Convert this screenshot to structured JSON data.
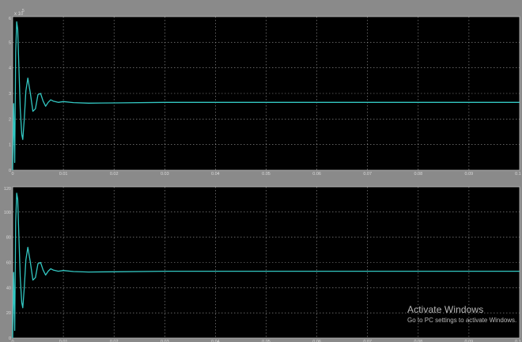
{
  "colors": {
    "figure_bg": "#8a8a8a",
    "axes_bg": "#000000",
    "trace": "#33c7c2",
    "grid": "#9a9a9a",
    "text": "#d8d8d8",
    "watermark": "#b9b9b9"
  },
  "chart_data": [
    {
      "type": "line",
      "title": "",
      "xlabel": "",
      "ylabel": "",
      "exponent_label": "x 10",
      "exponent_power": "5",
      "xlim": [
        0,
        0.1
      ],
      "ylim": [
        0,
        6
      ],
      "xticks": [
        0,
        0.01,
        0.02,
        0.03,
        0.04,
        0.05,
        0.06,
        0.07,
        0.08,
        0.09,
        0.1
      ],
      "xtick_labels": [
        "0",
        "0.01",
        "0.02",
        "0.03",
        "0.04",
        "0.05",
        "0.06",
        "0.07",
        "0.08",
        "0.09",
        "0.1"
      ],
      "yticks": [
        0,
        1,
        2,
        3,
        4,
        5,
        6
      ],
      "ytick_labels": [
        "0",
        "1",
        "2",
        "3",
        "4",
        "5",
        "6"
      ],
      "grid": true,
      "legend": "none",
      "series": [
        {
          "x": [
            0,
            0.0002,
            0.0004,
            0.0006,
            0.0008,
            0.001,
            0.0012,
            0.0015,
            0.0018,
            0.002,
            0.0023,
            0.0026,
            0.003,
            0.0035,
            0.004,
            0.0045,
            0.005,
            0.0055,
            0.006,
            0.0065,
            0.007,
            0.0075,
            0.008,
            0.009,
            0.01,
            0.012,
            0.015,
            0.02,
            0.03,
            0.05,
            0.07,
            0.1
          ],
          "y": [
            0,
            2.6,
            0.3,
            4.6,
            5.8,
            5.5,
            4.2,
            2.4,
            1.4,
            1.2,
            2.0,
            3.1,
            3.6,
            3.0,
            2.3,
            2.4,
            2.95,
            3.0,
            2.7,
            2.5,
            2.65,
            2.75,
            2.7,
            2.65,
            2.68,
            2.64,
            2.62,
            2.63,
            2.65,
            2.65,
            2.65,
            2.65
          ]
        }
      ]
    },
    {
      "type": "line",
      "title": "",
      "xlabel": "",
      "ylabel": "",
      "xlim": [
        0,
        0.1
      ],
      "ylim": [
        0,
        120
      ],
      "xticks": [
        0,
        0.01,
        0.02,
        0.03,
        0.04,
        0.05,
        0.06,
        0.07,
        0.08,
        0.09,
        0.1
      ],
      "xtick_labels": [
        "0",
        "0.01",
        "0.02",
        "0.03",
        "0.04",
        "0.05",
        "0.06",
        "0.07",
        "0.08",
        "0.09",
        "0.1"
      ],
      "yticks": [
        0,
        20,
        40,
        60,
        80,
        100,
        120
      ],
      "ytick_labels": [
        "0",
        "20",
        "40",
        "60",
        "80",
        "100",
        "120"
      ],
      "grid": true,
      "legend": "none",
      "series": [
        {
          "x": [
            0,
            0.0002,
            0.0004,
            0.0006,
            0.0008,
            0.001,
            0.0012,
            0.0015,
            0.0018,
            0.002,
            0.0023,
            0.0026,
            0.003,
            0.0035,
            0.004,
            0.0045,
            0.005,
            0.0055,
            0.006,
            0.0065,
            0.007,
            0.0075,
            0.008,
            0.009,
            0.01,
            0.012,
            0.015,
            0.02,
            0.03,
            0.05,
            0.07,
            0.1
          ],
          "y": [
            0,
            52,
            6,
            92,
            115,
            110,
            84,
            48,
            28,
            24,
            40,
            62,
            72,
            60,
            46,
            48,
            59,
            60,
            54,
            50,
            53,
            55,
            54,
            53,
            53.6,
            52.8,
            52.4,
            52.6,
            53,
            53,
            53,
            53
          ]
        }
      ]
    }
  ],
  "watermark": {
    "title": "Activate Windows",
    "subtitle": "Go to PC settings to activate Windows."
  }
}
